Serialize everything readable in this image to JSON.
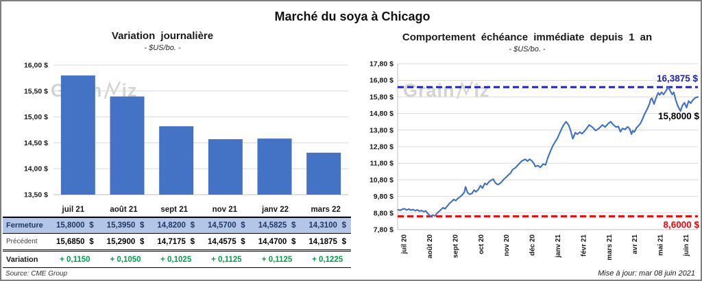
{
  "title": "Marché du soya à Chicago",
  "watermark": "GrainWiz",
  "source": "Source: CME Group",
  "updated": "Mise à jour: mar 08 juin 2021",
  "colors": {
    "bar": "#4472c4",
    "line": "#4472c4",
    "max_line": "#1f1fc0",
    "min_line": "#ff0000",
    "grid": "#d9d9d9",
    "axis": "#bfbfbf",
    "table_header_bg": "#b4c6e7",
    "table_header_text": "#1f3864",
    "variation_green": "#00a14b"
  },
  "chart_data": [
    {
      "type": "bar",
      "title": "Variation journalière",
      "subtitle": "- $US/bo. -",
      "categories": [
        "juil 21",
        "août 21",
        "sept 21",
        "nov 21",
        "janv 22",
        "mars 22"
      ],
      "values": [
        15.8,
        15.395,
        14.82,
        14.57,
        14.5825,
        14.31
      ],
      "ylim": [
        13.5,
        16.0
      ],
      "ytick_labels": [
        "16,00 $",
        "15,50 $",
        "15,00 $",
        "14,50 $",
        "14,00 $",
        "13,50 $"
      ],
      "grid": true,
      "legend": "none"
    },
    {
      "type": "line",
      "title": "Comportement échéance immédiate depuis 1 an",
      "subtitle": "- $US/bo. -",
      "x_tick_labels": [
        "juil 20",
        "août 20",
        "sept 20",
        "oct 20",
        "nov 20",
        "déc 20",
        "janv 21",
        "févr 21",
        "mars 21",
        "avr 21",
        "mai 21",
        "juin 21"
      ],
      "ylim": [
        7.8,
        17.8
      ],
      "ytick_labels": [
        "17,80 $",
        "16,80 $",
        "15,80 $",
        "14,80 $",
        "13,80 $",
        "12,80 $",
        "11,80 $",
        "10,80 $",
        "9,80 $",
        "8,80 $",
        "7,80 $"
      ],
      "xlim_months": [
        -0.27,
        11.44
      ],
      "grid": true,
      "legend": "none",
      "max_line": {
        "value": 16.3875,
        "label": "16,3875 $"
      },
      "min_line": {
        "value": 8.6,
        "label": "8,6000 $"
      },
      "last_point_label": {
        "value": 15.8,
        "label": "15,8000 $"
      },
      "series": [
        {
          "name": "échéance immédiate",
          "points": [
            [
              -0.25,
              9.0
            ],
            [
              -0.17,
              8.96
            ],
            [
              -0.08,
              9.03
            ],
            [
              0,
              9.06
            ],
            [
              0.08,
              8.98
            ],
            [
              0.17,
              9.04
            ],
            [
              0.25,
              8.97
            ],
            [
              0.33,
              9.01
            ],
            [
              0.42,
              8.94
            ],
            [
              0.5,
              8.99
            ],
            [
              0.58,
              8.91
            ],
            [
              0.67,
              8.95
            ],
            [
              0.75,
              8.88
            ],
            [
              0.83,
              8.93
            ],
            [
              0.9,
              8.78
            ],
            [
              0.96,
              8.68
            ],
            [
              1.02,
              8.6
            ],
            [
              1.1,
              8.68
            ],
            [
              1.18,
              8.62
            ],
            [
              1.25,
              8.75
            ],
            [
              1.33,
              8.88
            ],
            [
              1.42,
              9.0
            ],
            [
              1.5,
              9.12
            ],
            [
              1.58,
              9.05
            ],
            [
              1.67,
              9.22
            ],
            [
              1.75,
              9.38
            ],
            [
              1.83,
              9.48
            ],
            [
              1.92,
              9.62
            ],
            [
              2.0,
              9.55
            ],
            [
              2.08,
              9.68
            ],
            [
              2.17,
              9.78
            ],
            [
              2.25,
              9.9
            ],
            [
              2.33,
              10.05
            ],
            [
              2.38,
              10.38
            ],
            [
              2.46,
              10.02
            ],
            [
              2.54,
              9.93
            ],
            [
              2.63,
              9.98
            ],
            [
              2.71,
              10.18
            ],
            [
              2.79,
              10.08
            ],
            [
              2.88,
              10.22
            ],
            [
              2.96,
              10.45
            ],
            [
              3.04,
              10.3
            ],
            [
              3.13,
              10.59
            ],
            [
              3.21,
              10.51
            ],
            [
              3.29,
              10.68
            ],
            [
              3.38,
              10.78
            ],
            [
              3.46,
              10.84
            ],
            [
              3.54,
              10.62
            ],
            [
              3.63,
              10.51
            ],
            [
              3.71,
              10.57
            ],
            [
              3.79,
              10.68
            ],
            [
              3.88,
              10.85
            ],
            [
              3.96,
              10.95
            ],
            [
              4.04,
              11.08
            ],
            [
              4.13,
              11.2
            ],
            [
              4.21,
              11.41
            ],
            [
              4.33,
              11.54
            ],
            [
              4.46,
              11.75
            ],
            [
              4.58,
              11.95
            ],
            [
              4.71,
              12.04
            ],
            [
              4.79,
              11.93
            ],
            [
              4.88,
              12.04
            ],
            [
              4.96,
              11.95
            ],
            [
              5.04,
              11.8
            ],
            [
              5.1,
              11.6
            ],
            [
              5.2,
              11.66
            ],
            [
              5.3,
              11.55
            ],
            [
              5.4,
              11.75
            ],
            [
              5.5,
              11.7
            ],
            [
              5.58,
              12.1
            ],
            [
              5.68,
              12.5
            ],
            [
              5.78,
              12.85
            ],
            [
              5.88,
              13.1
            ],
            [
              5.96,
              13.3
            ],
            [
              6.08,
              13.72
            ],
            [
              6.18,
              14.05
            ],
            [
              6.3,
              14.31
            ],
            [
              6.4,
              14.1
            ],
            [
              6.48,
              13.75
            ],
            [
              6.56,
              13.28
            ],
            [
              6.66,
              13.65
            ],
            [
              6.74,
              13.55
            ],
            [
              6.84,
              13.68
            ],
            [
              6.92,
              13.58
            ],
            [
              7.0,
              13.7
            ],
            [
              7.1,
              13.9
            ],
            [
              7.2,
              14.11
            ],
            [
              7.32,
              13.98
            ],
            [
              7.45,
              13.77
            ],
            [
              7.58,
              13.9
            ],
            [
              7.72,
              14.11
            ],
            [
              7.82,
              13.98
            ],
            [
              7.94,
              14.19
            ],
            [
              8.04,
              14.31
            ],
            [
              8.15,
              14.11
            ],
            [
              8.25,
              13.98
            ],
            [
              8.34,
              14.02
            ],
            [
              8.42,
              13.7
            ],
            [
              8.5,
              13.9
            ],
            [
              8.6,
              13.84
            ],
            [
              8.7,
              14.0
            ],
            [
              8.78,
              13.88
            ],
            [
              8.85,
              13.55
            ],
            [
              8.9,
              13.76
            ],
            [
              8.96,
              13.68
            ],
            [
              9.05,
              13.95
            ],
            [
              9.12,
              14.05
            ],
            [
              9.2,
              14.2
            ],
            [
              9.28,
              14.46
            ],
            [
              9.36,
              14.76
            ],
            [
              9.47,
              15.09
            ],
            [
              9.55,
              15.37
            ],
            [
              9.6,
              15.65
            ],
            [
              9.65,
              15.72
            ],
            [
              9.73,
              15.37
            ],
            [
              9.79,
              15.66
            ],
            [
              9.89,
              16.05
            ],
            [
              9.95,
              15.92
            ],
            [
              10.02,
              16.08
            ],
            [
              10.1,
              15.95
            ],
            [
              10.2,
              16.18
            ],
            [
              10.29,
              16.39
            ],
            [
              10.38,
              16.1
            ],
            [
              10.44,
              15.95
            ],
            [
              10.5,
              16.08
            ],
            [
              10.58,
              15.6
            ],
            [
              10.66,
              15.25
            ],
            [
              10.76,
              14.95
            ],
            [
              10.84,
              15.3
            ],
            [
              10.92,
              15.45
            ],
            [
              11.0,
              15.15
            ],
            [
              11.08,
              15.55
            ],
            [
              11.16,
              15.42
            ],
            [
              11.24,
              15.6
            ],
            [
              11.34,
              15.75
            ],
            [
              11.44,
              15.8
            ]
          ]
        }
      ]
    }
  ],
  "table": {
    "unit": "$",
    "rows": [
      {
        "label": "Fermeture",
        "values": [
          "15,8000",
          "15,3950",
          "14,8200",
          "14,5700",
          "14,5825",
          "14,3100"
        ],
        "unit": "$"
      },
      {
        "label": "Précédent",
        "values": [
          "15,6850",
          "15,2900",
          "14,7175",
          "14,4575",
          "14,4700",
          "14,1875"
        ],
        "unit": "$"
      },
      {
        "label": "Variation",
        "values": [
          "+ 0,1150",
          "+ 0,1050",
          "+ 0,1025",
          "+ 0,1125",
          "+ 0,1125",
          "+ 0,1225"
        ]
      }
    ]
  }
}
